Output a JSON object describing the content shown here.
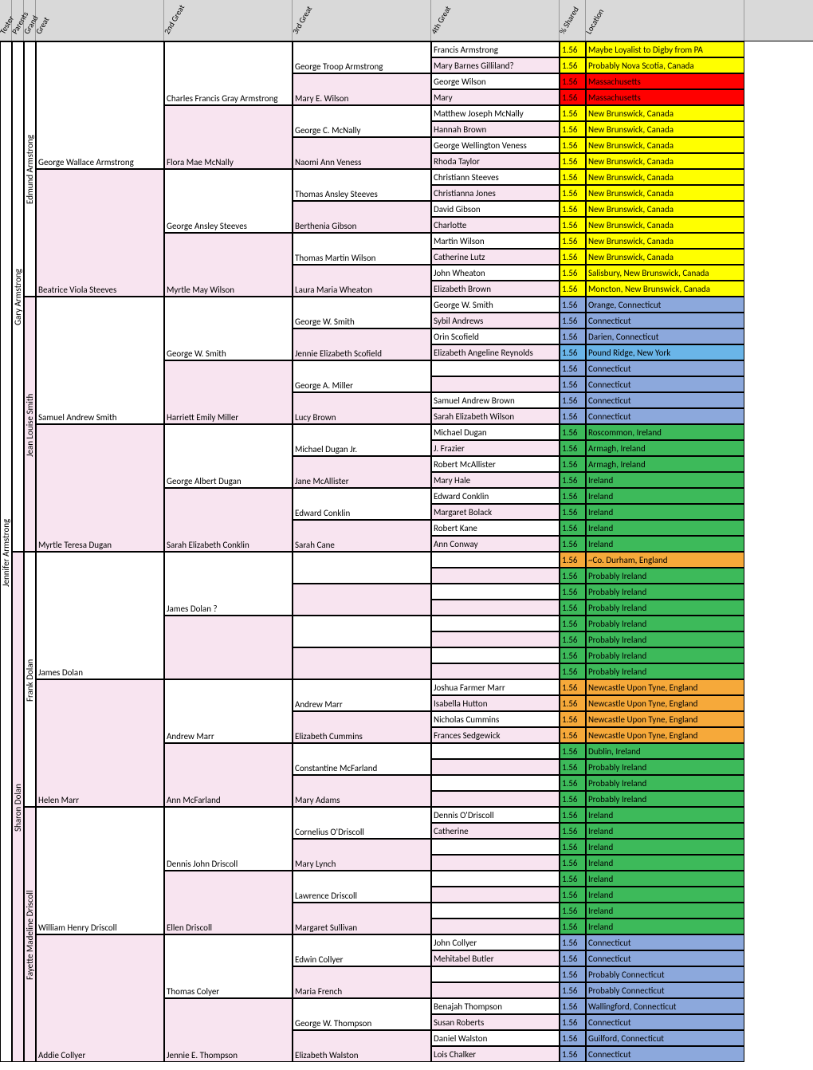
{
  "headers": [
    "Tester",
    "Parents",
    "Grand",
    "Great",
    "2nd Great",
    "3rd Great",
    "4th Great",
    "% Shared",
    "Location"
  ],
  "widths": {
    "tester": 15,
    "parents": 15,
    "grand": 15,
    "great": 161,
    "g2": 161,
    "g3": 174,
    "g4": 161,
    "pct": 33,
    "loc": 199
  },
  "colors": {
    "pink": "#f8e4f0",
    "white": "#ffffff",
    "yellow": "#ffff00",
    "red": "#ff0000",
    "blue": "#8ca8dc",
    "ltblue": "#6ab5e8",
    "green": "#3dba5a",
    "orange": "#f6a93a"
  },
  "tester": {
    "name": "Jennifer Armstrong",
    "bg": "white",
    "span": 64
  },
  "parents": [
    {
      "name": "Gary Armstrong",
      "bg": "white",
      "span": 32
    },
    {
      "name": "Sharon Dolan",
      "bg": "pink",
      "span": 32
    }
  ],
  "grands": [
    {
      "name": "Edmund Armstrong",
      "bg": "white",
      "span": 16
    },
    {
      "name": "Jean Louise Smith",
      "bg": "pink",
      "span": 16
    },
    {
      "name": "Frank Dolan",
      "bg": "white",
      "span": 16
    },
    {
      "name": "Fayette Madeline Driscoll",
      "bg": "pink",
      "span": 16
    }
  ],
  "greats": [
    {
      "name": "George Wallace Armstrong",
      "bg": "white",
      "span": 8
    },
    {
      "name": "Beatrice Viola Steeves",
      "bg": "pink",
      "span": 8
    },
    {
      "name": "Samuel Andrew Smith",
      "bg": "white",
      "span": 8
    },
    {
      "name": "Myrtle Teresa Dugan",
      "bg": "pink",
      "span": 8
    },
    {
      "name": "James Dolan",
      "bg": "white",
      "span": 8
    },
    {
      "name": "Helen Marr",
      "bg": "pink",
      "span": 8
    },
    {
      "name": "William Henry Driscoll",
      "bg": "white",
      "span": 8
    },
    {
      "name": "Addie Collyer",
      "bg": "pink",
      "span": 8
    }
  ],
  "g2": [
    {
      "name": "Charles Francis Gray Armstrong",
      "bg": "white",
      "span": 4
    },
    {
      "name": "Flora Mae McNally",
      "bg": "pink",
      "span": 4
    },
    {
      "name": "George Ansley Steeves",
      "bg": "white",
      "span": 4
    },
    {
      "name": "Myrtle May Wilson",
      "bg": "pink",
      "span": 4
    },
    {
      "name": "George W. Smith",
      "bg": "white",
      "span": 4
    },
    {
      "name": "Harriett Emily Miller",
      "bg": "pink",
      "span": 4
    },
    {
      "name": "George Albert Dugan",
      "bg": "white",
      "span": 4
    },
    {
      "name": "Sarah Elizabeth Conklin",
      "bg": "pink",
      "span": 4
    },
    {
      "name": "James Dolan ?",
      "bg": "white",
      "span": 4
    },
    {
      "name": "",
      "bg": "pink",
      "span": 4
    },
    {
      "name": "Andrew Marr",
      "bg": "white",
      "span": 4
    },
    {
      "name": "Ann McFarland",
      "bg": "pink",
      "span": 4
    },
    {
      "name": "Dennis John Driscoll",
      "bg": "white",
      "span": 4
    },
    {
      "name": "Ellen Driscoll",
      "bg": "pink",
      "span": 4
    },
    {
      "name": "Thomas Colyer",
      "bg": "white",
      "span": 4
    },
    {
      "name": "Jennie E. Thompson",
      "bg": "pink",
      "span": 4
    }
  ],
  "g3": [
    {
      "name": "George Troop Armstrong",
      "bg": "white",
      "span": 2
    },
    {
      "name": "Mary E. Wilson",
      "bg": "pink",
      "span": 2
    },
    {
      "name": "George C. McNally",
      "bg": "white",
      "span": 2
    },
    {
      "name": "Naomi Ann Veness",
      "bg": "pink",
      "span": 2
    },
    {
      "name": "Thomas Ansley Steeves",
      "bg": "white",
      "span": 2
    },
    {
      "name": "Berthenia Gibson",
      "bg": "pink",
      "span": 2
    },
    {
      "name": "Thomas Martin Wilson",
      "bg": "white",
      "span": 2
    },
    {
      "name": "Laura Maria Wheaton",
      "bg": "pink",
      "span": 2
    },
    {
      "name": "George W. Smith",
      "bg": "white",
      "span": 2
    },
    {
      "name": "Jennie Elizabeth Scofield",
      "bg": "pink",
      "span": 2
    },
    {
      "name": "George A. Miller",
      "bg": "white",
      "span": 2
    },
    {
      "name": "Lucy Brown",
      "bg": "pink",
      "span": 2
    },
    {
      "name": "Michael Dugan Jr.",
      "bg": "white",
      "span": 2
    },
    {
      "name": "Jane McAllister",
      "bg": "pink",
      "span": 2
    },
    {
      "name": "Edward Conklin",
      "bg": "white",
      "span": 2
    },
    {
      "name": "Sarah Cane",
      "bg": "pink",
      "span": 2
    },
    {
      "name": "",
      "bg": "white",
      "span": 2
    },
    {
      "name": "",
      "bg": "pink",
      "span": 2
    },
    {
      "name": "",
      "bg": "white",
      "span": 2
    },
    {
      "name": "",
      "bg": "pink",
      "span": 2
    },
    {
      "name": "Andrew Marr",
      "bg": "white",
      "span": 2
    },
    {
      "name": "Elizabeth Cummins",
      "bg": "pink",
      "span": 2
    },
    {
      "name": "Constantine McFarland",
      "bg": "white",
      "span": 2
    },
    {
      "name": "Mary Adams",
      "bg": "pink",
      "span": 2
    },
    {
      "name": "Cornelius O'Driscoll",
      "bg": "white",
      "span": 2
    },
    {
      "name": "Mary Lynch",
      "bg": "pink",
      "span": 2
    },
    {
      "name": "Lawrence Driscoll",
      "bg": "white",
      "span": 2
    },
    {
      "name": "Margaret Sullivan",
      "bg": "pink",
      "span": 2
    },
    {
      "name": "Edwin Collyer",
      "bg": "white",
      "span": 2
    },
    {
      "name": "Maria French",
      "bg": "pink",
      "span": 2
    },
    {
      "name": "George W. Thompson",
      "bg": "white",
      "span": 2
    },
    {
      "name": "Elizabeth Walston",
      "bg": "pink",
      "span": 2
    }
  ],
  "rows": [
    {
      "g4": "Francis Armstrong",
      "bg": "white",
      "pct": "1.56",
      "loc": "Maybe Loyalist to Digby from PA",
      "locbg": "yellow"
    },
    {
      "g4": "Mary Barnes Gilliland?",
      "bg": "pink",
      "pct": "1.56",
      "loc": "Probably Nova Scotia, Canada",
      "locbg": "yellow"
    },
    {
      "g4": "George Wilson",
      "bg": "white",
      "pct": "1.56",
      "loc": "Massachusetts",
      "locbg": "red"
    },
    {
      "g4": "Mary",
      "bg": "pink",
      "pct": "1.56",
      "loc": "Massachusetts",
      "locbg": "red"
    },
    {
      "g4": "Matthew Joseph McNally",
      "bg": "white",
      "pct": "1.56",
      "loc": "New Brunswick, Canada",
      "locbg": "yellow"
    },
    {
      "g4": "Hannah Brown",
      "bg": "pink",
      "pct": "1.56",
      "loc": "New Brunswick, Canada",
      "locbg": "yellow"
    },
    {
      "g4": "George Wellington Veness",
      "bg": "white",
      "pct": "1.56",
      "loc": "New Brunswick, Canada",
      "locbg": "yellow"
    },
    {
      "g4": "Rhoda Taylor",
      "bg": "pink",
      "pct": "1.56",
      "loc": "New Brunswick, Canada",
      "locbg": "yellow"
    },
    {
      "g4": "Christiann Steeves",
      "bg": "white",
      "pct": "1.56",
      "loc": "New Brunswick, Canada",
      "locbg": "yellow"
    },
    {
      "g4": "Christianna Jones",
      "bg": "pink",
      "pct": "1.56",
      "loc": "New Brunswick, Canada",
      "locbg": "yellow"
    },
    {
      "g4": "David Gibson",
      "bg": "white",
      "pct": "1.56",
      "loc": "New Brunswick, Canada",
      "locbg": "yellow"
    },
    {
      "g4": "Charlotte",
      "bg": "pink",
      "pct": "1.56",
      "loc": "New Brunswick, Canada",
      "locbg": "yellow"
    },
    {
      "g4": "Martin Wilson",
      "bg": "white",
      "pct": "1.56",
      "loc": "New Brunswick, Canada",
      "locbg": "yellow"
    },
    {
      "g4": "Catherine Lutz",
      "bg": "pink",
      "pct": "1.56",
      "loc": "New Brunswick, Canada",
      "locbg": "yellow"
    },
    {
      "g4": "John Wheaton",
      "bg": "white",
      "pct": "1.56",
      "loc": "Salisbury, New Brunswick, Canada",
      "locbg": "yellow"
    },
    {
      "g4": "Elizabeth Brown",
      "bg": "pink",
      "pct": "1.56",
      "loc": "Moncton, New Brunswick, Canada",
      "locbg": "yellow"
    },
    {
      "g4": "George W. Smith",
      "bg": "white",
      "pct": "1.56",
      "loc": "Orange, Connecticut",
      "locbg": "blue"
    },
    {
      "g4": "Sybil Andrews",
      "bg": "pink",
      "pct": "1.56",
      "loc": "Connecticut",
      "locbg": "blue"
    },
    {
      "g4": "Orin Scofield",
      "bg": "white",
      "pct": "1.56",
      "loc": "Darien, Connecticut",
      "locbg": "blue"
    },
    {
      "g4": "Elizabeth Angeline Reynolds",
      "bg": "pink",
      "pct": "1.56",
      "loc": "Pound Ridge, New York",
      "locbg": "ltblue"
    },
    {
      "g4": "",
      "bg": "white",
      "pct": "1.56",
      "loc": "Connecticut",
      "locbg": "blue"
    },
    {
      "g4": "",
      "bg": "pink",
      "pct": "1.56",
      "loc": "Connecticut",
      "locbg": "blue"
    },
    {
      "g4": "Samuel Andrew Brown",
      "bg": "white",
      "pct": "1.56",
      "loc": "Connecticut",
      "locbg": "blue"
    },
    {
      "g4": "Sarah Elizabeth Wilson",
      "bg": "pink",
      "pct": "1.56",
      "loc": "Connecticut",
      "locbg": "blue"
    },
    {
      "g4": "Michael Dugan",
      "bg": "white",
      "pct": "1.56",
      "loc": "Roscommon, Ireland",
      "locbg": "green"
    },
    {
      "g4": "J. Frazier",
      "bg": "pink",
      "pct": "1.56",
      "loc": "Armagh, Ireland",
      "locbg": "green"
    },
    {
      "g4": "Robert McAllister",
      "bg": "white",
      "pct": "1.56",
      "loc": "Armagh, Ireland",
      "locbg": "green"
    },
    {
      "g4": "Mary Hale",
      "bg": "pink",
      "pct": "1.56",
      "loc": "Ireland",
      "locbg": "green"
    },
    {
      "g4": "Edward Conklin",
      "bg": "white",
      "pct": "1.56",
      "loc": "Ireland",
      "locbg": "green"
    },
    {
      "g4": "Margaret Bolack",
      "bg": "pink",
      "pct": "1.56",
      "loc": "Ireland",
      "locbg": "green"
    },
    {
      "g4": "Robert Kane",
      "bg": "white",
      "pct": "1.56",
      "loc": "Ireland",
      "locbg": "green"
    },
    {
      "g4": "Ann Conway",
      "bg": "pink",
      "pct": "1.56",
      "loc": "Ireland",
      "locbg": "green"
    },
    {
      "g4": "",
      "bg": "white",
      "pct": "1.56",
      "loc": "~Co. Durham, England",
      "locbg": "orange"
    },
    {
      "g4": "",
      "bg": "pink",
      "pct": "1.56",
      "loc": "Probably Ireland",
      "locbg": "green"
    },
    {
      "g4": "",
      "bg": "white",
      "pct": "1.56",
      "loc": "Probably Ireland",
      "locbg": "green"
    },
    {
      "g4": "",
      "bg": "pink",
      "pct": "1.56",
      "loc": "Probably Ireland",
      "locbg": "green"
    },
    {
      "g4": "",
      "bg": "white",
      "pct": "1.56",
      "loc": "Probably Ireland",
      "locbg": "green"
    },
    {
      "g4": "",
      "bg": "pink",
      "pct": "1.56",
      "loc": "Probably Ireland",
      "locbg": "green"
    },
    {
      "g4": "",
      "bg": "white",
      "pct": "1.56",
      "loc": "Probably Ireland",
      "locbg": "green"
    },
    {
      "g4": "",
      "bg": "pink",
      "pct": "1.56",
      "loc": "Probably Ireland",
      "locbg": "green"
    },
    {
      "g4": "Joshua Farmer Marr",
      "bg": "white",
      "pct": "1.56",
      "loc": "Newcastle Upon Tyne, England",
      "locbg": "orange"
    },
    {
      "g4": "Isabella Hutton",
      "bg": "pink",
      "pct": "1.56",
      "loc": "Newcastle Upon Tyne, England",
      "locbg": "orange"
    },
    {
      "g4": "Nicholas Cummins",
      "bg": "white",
      "pct": "1.56",
      "loc": "Newcastle Upon Tyne, England",
      "locbg": "orange"
    },
    {
      "g4": "Frances Sedgewick",
      "bg": "pink",
      "pct": "1.56",
      "loc": "Newcastle Upon Tyne, England",
      "locbg": "orange"
    },
    {
      "g4": "",
      "bg": "white",
      "pct": "1.56",
      "loc": "Dublin, Ireland",
      "locbg": "green"
    },
    {
      "g4": "",
      "bg": "pink",
      "pct": "1.56",
      "loc": "Probably Ireland",
      "locbg": "green"
    },
    {
      "g4": "",
      "bg": "white",
      "pct": "1.56",
      "loc": "Probably Ireland",
      "locbg": "green"
    },
    {
      "g4": "",
      "bg": "pink",
      "pct": "1.56",
      "loc": "Probably Ireland",
      "locbg": "green"
    },
    {
      "g4": "Dennis O'Driscoll",
      "bg": "white",
      "pct": "1.56",
      "loc": "Ireland",
      "locbg": "green"
    },
    {
      "g4": "Catherine",
      "bg": "pink",
      "pct": "1.56",
      "loc": "Ireland",
      "locbg": "green"
    },
    {
      "g4": "",
      "bg": "white",
      "pct": "1.56",
      "loc": "Ireland",
      "locbg": "green"
    },
    {
      "g4": "",
      "bg": "pink",
      "pct": "1.56",
      "loc": "Ireland",
      "locbg": "green"
    },
    {
      "g4": "",
      "bg": "white",
      "pct": "1.56",
      "loc": "Ireland",
      "locbg": "green"
    },
    {
      "g4": "",
      "bg": "pink",
      "pct": "1.56",
      "loc": "Ireland",
      "locbg": "green"
    },
    {
      "g4": "",
      "bg": "white",
      "pct": "1.56",
      "loc": "Ireland",
      "locbg": "green"
    },
    {
      "g4": "",
      "bg": "pink",
      "pct": "1.56",
      "loc": "Ireland",
      "locbg": "green"
    },
    {
      "g4": "John Collyer",
      "bg": "white",
      "pct": "1.56",
      "loc": "Connecticut",
      "locbg": "blue"
    },
    {
      "g4": "Mehitabel Butler",
      "bg": "pink",
      "pct": "1.56",
      "loc": "Connecticut",
      "locbg": "blue"
    },
    {
      "g4": "",
      "bg": "white",
      "pct": "1.56",
      "loc": "Probably Connecticut",
      "locbg": "blue"
    },
    {
      "g4": "",
      "bg": "pink",
      "pct": "1.56",
      "loc": "Probably Connecticut",
      "locbg": "blue"
    },
    {
      "g4": "Benajah Thompson",
      "bg": "white",
      "pct": "1.56",
      "loc": "Wallingford, Connecticut",
      "locbg": "blue"
    },
    {
      "g4": "Susan Roberts",
      "bg": "pink",
      "pct": "1.56",
      "loc": "Connecticut",
      "locbg": "blue"
    },
    {
      "g4": "Daniel Walston",
      "bg": "white",
      "pct": "1.56",
      "loc": "Guilford, Connecticut",
      "locbg": "blue"
    },
    {
      "g4": "Lois Chalker",
      "bg": "pink",
      "pct": "1.56",
      "loc": "Connecticut",
      "locbg": "blue"
    }
  ]
}
